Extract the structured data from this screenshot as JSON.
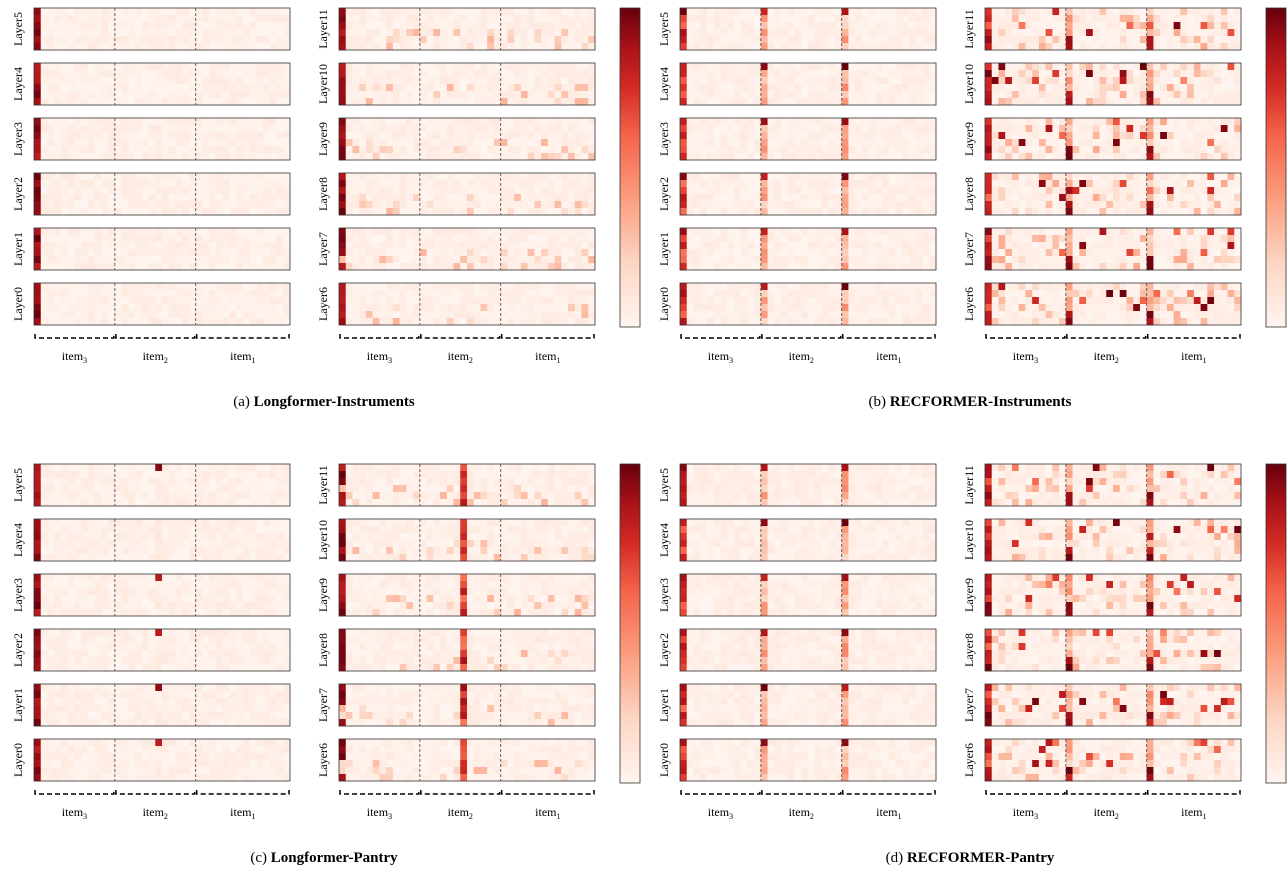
{
  "chart_data": {
    "type": "heatmap",
    "colorscale": [
      "#fff5f0",
      "#fdd6c4",
      "#fb9e7f",
      "#f4644a",
      "#d42b25",
      "#a81118",
      "#67000d"
    ],
    "panels": [
      {
        "id": "a",
        "caption_prefix": "(a) ",
        "caption_bold": "Longformer-Instruments",
        "groups": [
          {
            "layers": [
              "Layer5",
              "Layer4",
              "Layer3",
              "Layer2",
              "Layer1",
              "Layer0"
            ]
          },
          {
            "layers": [
              "Layer11",
              "Layer10",
              "Layer9",
              "Layer8",
              "Layer7",
              "Layer6"
            ]
          }
        ],
        "items": [
          "item3",
          "item2",
          "item1"
        ],
        "pattern": "longformer"
      },
      {
        "id": "b",
        "caption_prefix": "(b) ",
        "caption_bold": "RECFORMER-Instruments",
        "groups": [
          {
            "layers": [
              "Layer5",
              "Layer4",
              "Layer3",
              "Layer2",
              "Layer1",
              "Layer0"
            ]
          },
          {
            "layers": [
              "Layer11",
              "Layer10",
              "Layer9",
              "Layer8",
              "Layer7",
              "Layer6"
            ]
          }
        ],
        "items": [
          "item3",
          "item2",
          "item1"
        ],
        "pattern": "recformer"
      },
      {
        "id": "c",
        "caption_prefix": "(c) ",
        "caption_bold": "Longformer-Pantry",
        "groups": [
          {
            "layers": [
              "Layer5",
              "Layer4",
              "Layer3",
              "Layer2",
              "Layer1",
              "Layer0"
            ]
          },
          {
            "layers": [
              "Layer11",
              "Layer10",
              "Layer9",
              "Layer8",
              "Layer7",
              "Layer6"
            ]
          }
        ],
        "items": [
          "item3",
          "item2",
          "item1"
        ],
        "pattern": "longformer-pantry"
      },
      {
        "id": "d",
        "caption_prefix": "(d) ",
        "caption_bold": "RECFORMER-Pantry",
        "groups": [
          {
            "layers": [
              "Layer5",
              "Layer4",
              "Layer3",
              "Layer2",
              "Layer1",
              "Layer0"
            ]
          },
          {
            "layers": [
              "Layer11",
              "Layer10",
              "Layer9",
              "Layer8",
              "Layer7",
              "Layer6"
            ]
          }
        ],
        "items": [
          "item3",
          "item2",
          "item1"
        ],
        "pattern": "recformer"
      }
    ]
  }
}
